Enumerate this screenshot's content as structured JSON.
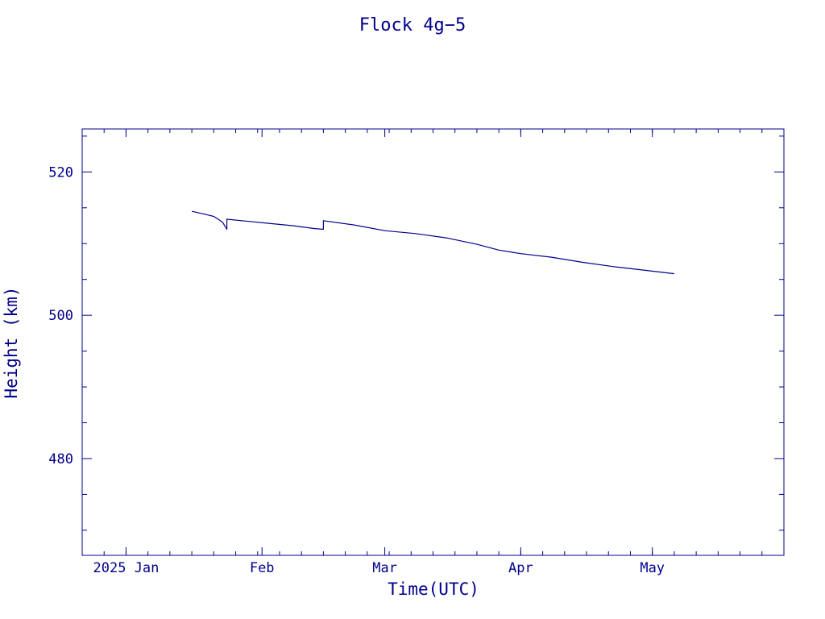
{
  "colors": {
    "ink": "#00008b",
    "background": "#ffffff"
  },
  "chart_data": {
    "type": "line",
    "title": "Flock 4g−5",
    "xlabel": "Time(UTC)",
    "ylabel": "Height (km)",
    "xlim": [
      "2024-12-22",
      "2025-05-31"
    ],
    "ylim": [
      466.5,
      526.0
    ],
    "x_ticks": [
      {
        "date": "2025-01-01",
        "label": "2025 Jan"
      },
      {
        "date": "2025-02-01",
        "label": "Feb"
      },
      {
        "date": "2025-03-01",
        "label": "Mar"
      },
      {
        "date": "2025-04-01",
        "label": "Apr"
      },
      {
        "date": "2025-05-01",
        "label": "May"
      }
    ],
    "x_minor_tick_days": 5,
    "y_ticks": [
      480,
      500,
      520
    ],
    "y_minor_step": 5,
    "grid": false,
    "series": [
      {
        "points": [
          [
            "2025-01-16",
            514.5
          ],
          [
            "2025-01-19",
            514.1
          ],
          [
            "2025-01-21",
            513.8
          ],
          [
            "2025-01-22",
            513.4
          ],
          [
            "2025-01-23",
            513.0
          ],
          [
            "2025-01-24",
            512.0
          ],
          [
            "2025-01-24",
            513.4
          ],
          [
            "2025-01-29",
            513.1
          ],
          [
            "2025-02-03",
            512.8
          ],
          [
            "2025-02-08",
            512.5
          ],
          [
            "2025-02-13",
            512.1
          ],
          [
            "2025-02-15",
            512.0
          ],
          [
            "2025-02-15",
            513.2
          ],
          [
            "2025-02-22",
            512.6
          ],
          [
            "2025-03-01",
            511.8
          ],
          [
            "2025-03-08",
            511.4
          ],
          [
            "2025-03-15",
            510.8
          ],
          [
            "2025-03-22",
            509.9
          ],
          [
            "2025-03-27",
            509.1
          ],
          [
            "2025-04-01",
            508.6
          ],
          [
            "2025-04-08",
            508.1
          ],
          [
            "2025-04-15",
            507.4
          ],
          [
            "2025-04-22",
            506.8
          ],
          [
            "2025-04-29",
            506.3
          ],
          [
            "2025-05-06",
            505.8
          ]
        ]
      }
    ]
  }
}
